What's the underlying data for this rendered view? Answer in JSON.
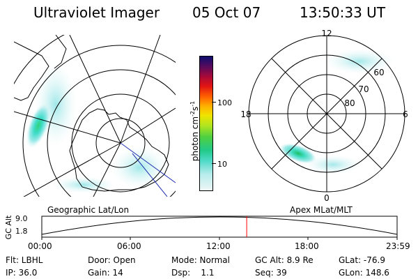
{
  "header": {
    "instrument": "Ultraviolet Imager",
    "date": "05 Oct 07",
    "time": "13:50:33 UT"
  },
  "left_panel": {
    "caption": "Geographic Lat/Lon"
  },
  "right_panel": {
    "caption": "Apex MLat/MLT",
    "mlt_labels": {
      "top": "12",
      "bottom": "0",
      "left": "18",
      "right": "6"
    },
    "lat_labels": [
      "60",
      "70",
      "80"
    ]
  },
  "colorbar": {
    "unit_text": "photon cm",
    "unit_sup1": "-2",
    "unit_mid": "s",
    "unit_sup2": "-1",
    "tick_100": "100",
    "tick_10": "10",
    "colors": [
      "#e8f4f4",
      "#c8ecec",
      "#8ee6e6",
      "#3ed6c8",
      "#22c98a",
      "#3ccf3c",
      "#9be020",
      "#e6e600",
      "#ffb400",
      "#ff6600",
      "#e81010",
      "#b00830",
      "#6a0a50",
      "#2a0a5a",
      "#101070"
    ]
  },
  "timeline": {
    "ylabel": "GC Alt",
    "y_ticks": [
      "9.0",
      "1.8"
    ],
    "x_ticks": [
      "00:00",
      "06:00",
      "12:00",
      "18:00",
      "23:59"
    ],
    "marker_fraction": 0.5767,
    "marker_color": "#ff0000"
  },
  "footer": {
    "flt": "Flt: LBHL",
    "ip": "IP: 36.0",
    "door": "Door: Open",
    "gain": "Gain: 14",
    "mode": "Mode: Normal",
    "dsp": "Dsp:    1.1",
    "gcalt": "GC Alt: 8.9 Re",
    "seq": "Seq: 39",
    "glat": "GLat: -76.9",
    "glon": "GLon: 148.6"
  }
}
